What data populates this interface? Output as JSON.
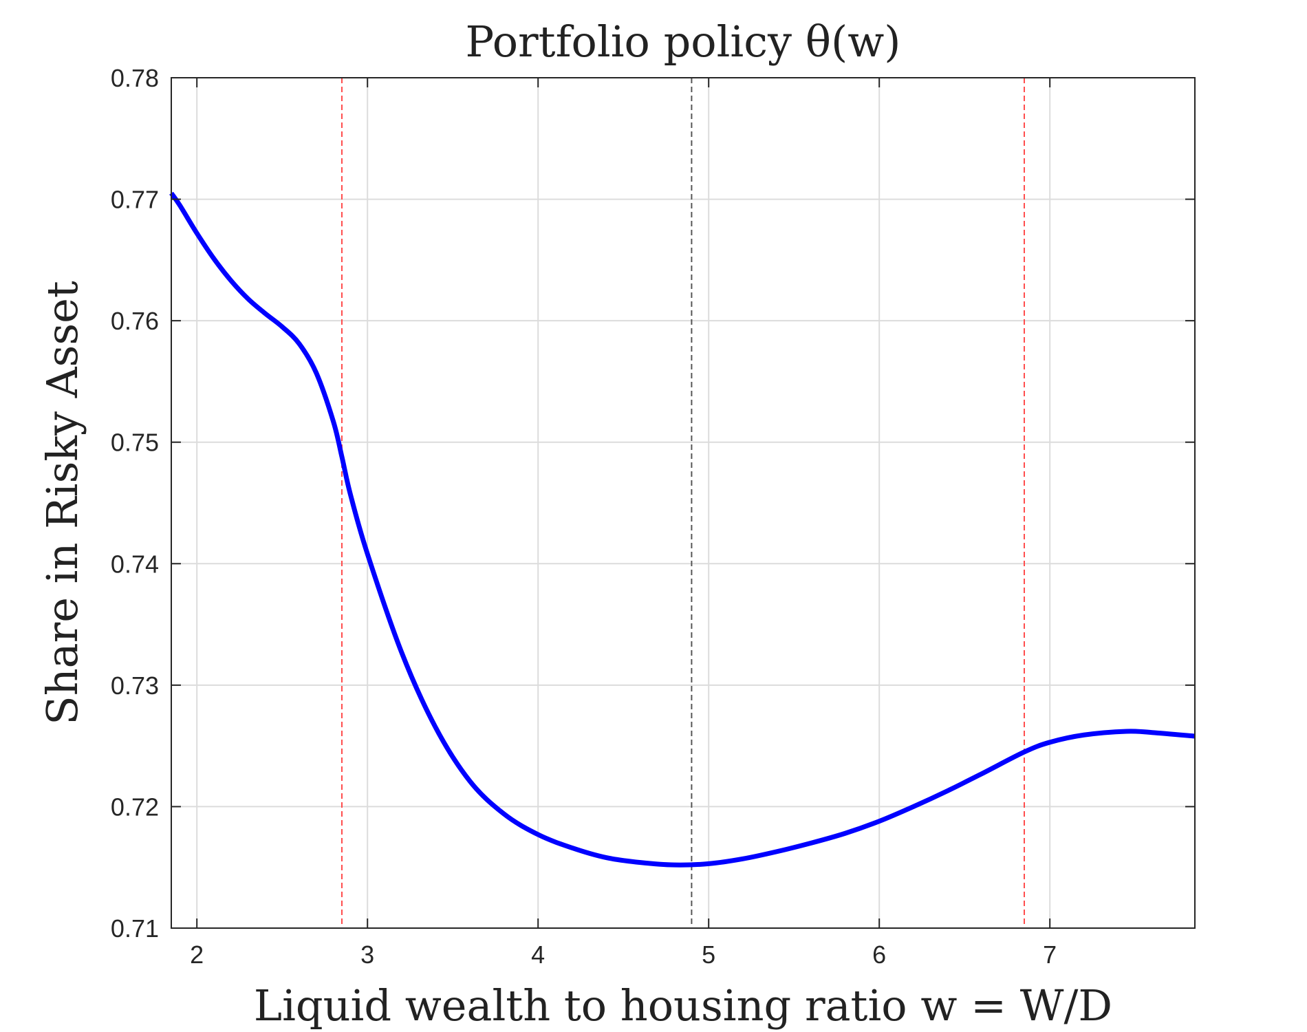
{
  "chart_data": {
    "type": "line",
    "title": "Portfolio policy θ(w)",
    "xlabel": "Liquid wealth to housing ratio w = W/D",
    "ylabel": "Share in Risky Asset",
    "xlim": [
      1.85,
      7.85
    ],
    "ylim": [
      0.71,
      0.78
    ],
    "x_ticks": [
      2,
      3,
      4,
      5,
      6,
      7
    ],
    "x_tick_labels": [
      "2",
      "3",
      "4",
      "5",
      "6",
      "7"
    ],
    "y_ticks": [
      0.71,
      0.72,
      0.73,
      0.74,
      0.75,
      0.76,
      0.77,
      0.78
    ],
    "y_tick_labels": [
      "0.71",
      "0.72",
      "0.73",
      "0.74",
      "0.75",
      "0.76",
      "0.77",
      "0.78"
    ],
    "grid": true,
    "series": [
      {
        "color": "#0000ff",
        "x": [
          1.85,
          1.9,
          2.0,
          2.1,
          2.2,
          2.3,
          2.4,
          2.5,
          2.6,
          2.7,
          2.8,
          2.85,
          2.9,
          3.0,
          3.2,
          3.4,
          3.6,
          3.8,
          4.0,
          4.2,
          4.4,
          4.6,
          4.8,
          5.0,
          5.2,
          5.4,
          5.6,
          5.8,
          6.0,
          6.2,
          6.4,
          6.6,
          6.85,
          7.0,
          7.2,
          7.45,
          7.6,
          7.85
        ],
        "y": [
          0.7705,
          0.7695,
          0.7672,
          0.7651,
          0.7633,
          0.7618,
          0.7606,
          0.7595,
          0.7581,
          0.7557,
          0.7517,
          0.7488,
          0.7457,
          0.7408,
          0.7327,
          0.7265,
          0.7221,
          0.7194,
          0.7177,
          0.7166,
          0.7158,
          0.7154,
          0.7152,
          0.7153,
          0.7157,
          0.7163,
          0.717,
          0.7178,
          0.7188,
          0.72,
          0.7213,
          0.7227,
          0.7245,
          0.7253,
          0.7259,
          0.7262,
          0.7261,
          0.7258
        ]
      }
    ],
    "vertical_lines": [
      {
        "x": 2.85,
        "color": "#ff4d4d",
        "style": "dashed"
      },
      {
        "x": 4.9,
        "color": "#555555",
        "style": "dashed"
      },
      {
        "x": 6.85,
        "color": "#ff4d4d",
        "style": "dashed"
      }
    ]
  }
}
